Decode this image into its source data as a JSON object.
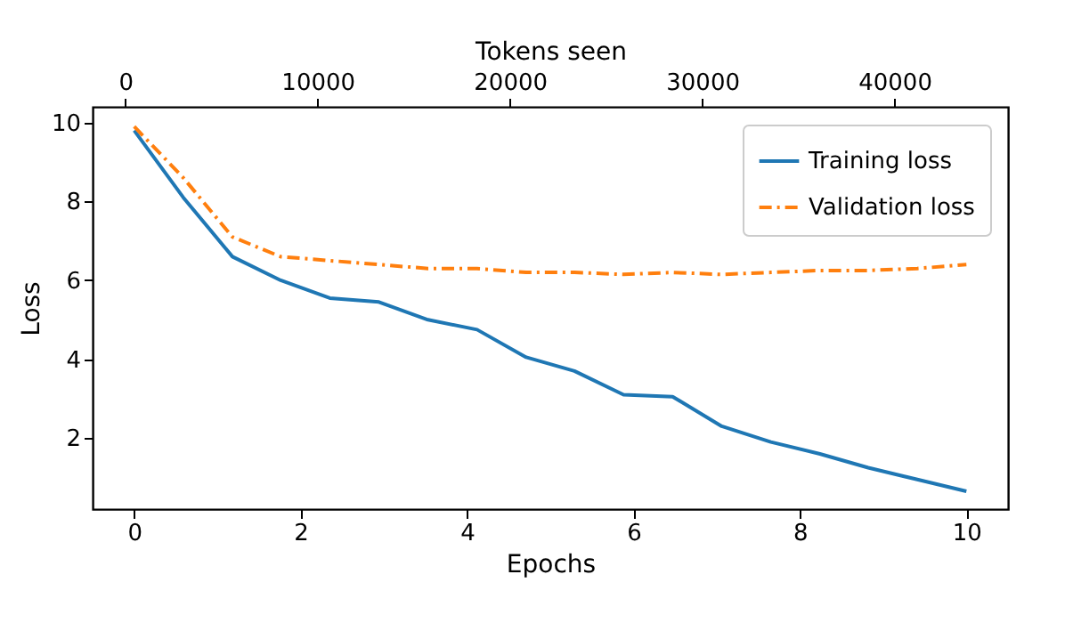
{
  "chart_data": {
    "type": "line",
    "xlabel": "Epochs",
    "ylabel": "Loss",
    "x2label": "Tokens seen",
    "x": [
      0,
      0.59,
      1.18,
      1.76,
      2.35,
      2.94,
      3.53,
      4.12,
      4.71,
      5.29,
      5.88,
      6.47,
      7.06,
      7.65,
      8.24,
      8.82,
      9.41,
      10
    ],
    "series": [
      {
        "name": "Training loss",
        "color": "#1f77b4",
        "line_style": "solid",
        "values": [
          9.8,
          8.1,
          6.6,
          6.0,
          5.55,
          5.45,
          5.0,
          4.75,
          4.05,
          3.7,
          3.1,
          3.05,
          2.3,
          1.9,
          1.6,
          1.25,
          0.95,
          0.65
        ]
      },
      {
        "name": "Validation loss",
        "color": "#ff7f0e",
        "line_style": "dashdot",
        "values": [
          9.9,
          8.6,
          7.1,
          6.6,
          6.5,
          6.4,
          6.3,
          6.3,
          6.2,
          6.2,
          6.15,
          6.2,
          6.15,
          6.2,
          6.25,
          6.25,
          6.3,
          6.4
        ]
      }
    ],
    "xlim": [
      -0.5,
      10.5
    ],
    "xticks": [
      0,
      2,
      4,
      6,
      8,
      10
    ],
    "x2lim": [
      -1700,
      45900
    ],
    "x2ticks": [
      0,
      10000,
      20000,
      30000,
      40000
    ],
    "ylim": [
      0.2,
      10.4
    ],
    "yticks": [
      2,
      4,
      6,
      8,
      10
    ],
    "grid": false,
    "legend": "top right"
  }
}
